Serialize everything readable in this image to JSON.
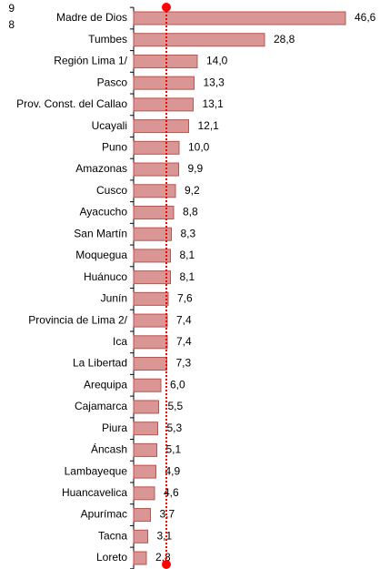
{
  "chart_data": {
    "type": "bar",
    "orientation": "horizontal",
    "categories": [
      "Madre de Dios",
      "Tumbes",
      "Región Lima 1/",
      "Pasco",
      "Prov. Const. del Callao",
      "Ucayali",
      "Puno",
      "Amazonas",
      "Cusco",
      "Ayacucho",
      "San Martín",
      "Moquegua",
      "Huánuco",
      "Junín",
      "Provincia de Lima 2/",
      "Ica",
      "La Libertad",
      "Arequipa",
      "Cajamarca",
      "Piura",
      "Áncash",
      "Lambayeque",
      "Huancavelica",
      "Apurímac",
      "Tacna",
      "Loreto"
    ],
    "values": [
      46.6,
      28.8,
      14.0,
      13.3,
      13.1,
      12.1,
      10.0,
      9.9,
      9.2,
      8.8,
      8.3,
      8.1,
      8.1,
      7.6,
      7.4,
      7.4,
      7.3,
      6.0,
      5.5,
      5.3,
      5.1,
      4.9,
      4.6,
      3.7,
      3.1,
      2.8
    ],
    "value_labels": [
      "46,6",
      "28,8",
      "14,0",
      "13,3",
      "13,1",
      "12,1",
      "10,0",
      "9,9",
      "9,2",
      "8,8",
      "8,3",
      "8,1",
      "8,1",
      "7,6",
      "7,4",
      "7,4",
      "7,3",
      "6,0",
      "5,5",
      "5,3",
      "5,1",
      "4,9",
      "4,6",
      "3,7",
      "3,1",
      "2,8"
    ],
    "color": "#d99694",
    "edge_color": "#c0504d",
    "xlim": [
      0,
      50
    ],
    "reference_line": {
      "value": 7.2,
      "color": "#ff0000"
    },
    "annotations": [
      "9",
      "8"
    ]
  }
}
